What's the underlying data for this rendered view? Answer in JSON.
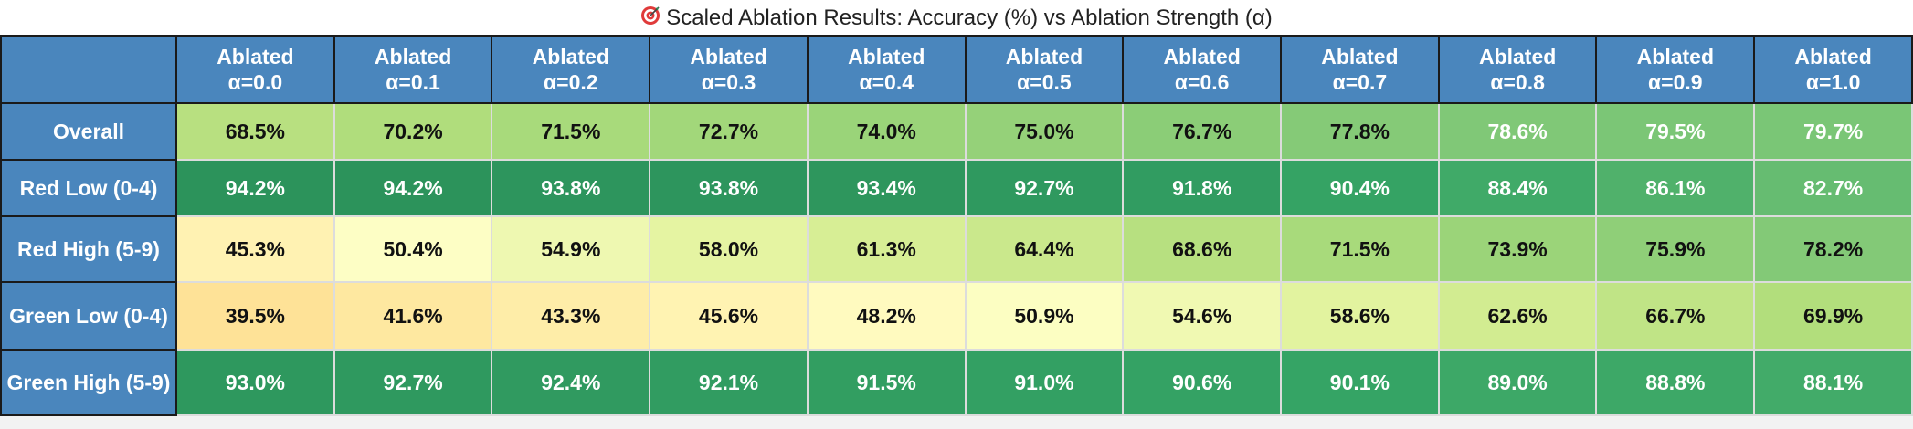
{
  "title": "Scaled Ablation Results: Accuracy (%) vs Ablation Strength (α)",
  "title_icon": "target-icon",
  "chart_data": {
    "type": "heatmap",
    "title": "Scaled Ablation Results: Accuracy (%) vs Ablation Strength (α)",
    "columns": [
      {
        "line1": "Ablated",
        "line2": "α=0.0"
      },
      {
        "line1": "Ablated",
        "line2": "α=0.1"
      },
      {
        "line1": "Ablated",
        "line2": "α=0.2"
      },
      {
        "line1": "Ablated",
        "line2": "α=0.3"
      },
      {
        "line1": "Ablated",
        "line2": "α=0.4"
      },
      {
        "line1": "Ablated",
        "line2": "α=0.5"
      },
      {
        "line1": "Ablated",
        "line2": "α=0.6"
      },
      {
        "line1": "Ablated",
        "line2": "α=0.7"
      },
      {
        "line1": "Ablated",
        "line2": "α=0.8"
      },
      {
        "line1": "Ablated",
        "line2": "α=0.9"
      },
      {
        "line1": "Ablated",
        "line2": "α=1.0"
      }
    ],
    "rows": [
      {
        "label": "Overall",
        "values": [
          68.5,
          70.2,
          71.5,
          72.7,
          74.0,
          75.0,
          76.7,
          77.8,
          78.6,
          79.5,
          79.7
        ]
      },
      {
        "label": "Red Low (0-4)",
        "values": [
          94.2,
          94.2,
          93.8,
          93.8,
          93.4,
          92.7,
          91.8,
          90.4,
          88.4,
          86.1,
          82.7
        ]
      },
      {
        "label": "Red High (5-9)",
        "values": [
          45.3,
          50.4,
          54.9,
          58.0,
          61.3,
          64.4,
          68.6,
          71.5,
          73.9,
          75.9,
          78.2
        ]
      },
      {
        "label": "Green Low (0-4)",
        "values": [
          39.5,
          41.6,
          43.3,
          45.6,
          48.2,
          50.9,
          54.6,
          58.6,
          62.6,
          66.7,
          69.9
        ]
      },
      {
        "label": "Green High (5-9)",
        "values": [
          93.0,
          92.7,
          92.4,
          92.1,
          91.5,
          91.0,
          90.6,
          90.1,
          89.0,
          88.8,
          88.1
        ]
      }
    ],
    "value_suffix": "%",
    "colormap": "RdYlGn",
    "vmin": 0,
    "vmax": 100,
    "colors": {
      "header_bg": "#4a86bd",
      "header_text": "#ffffff"
    }
  }
}
